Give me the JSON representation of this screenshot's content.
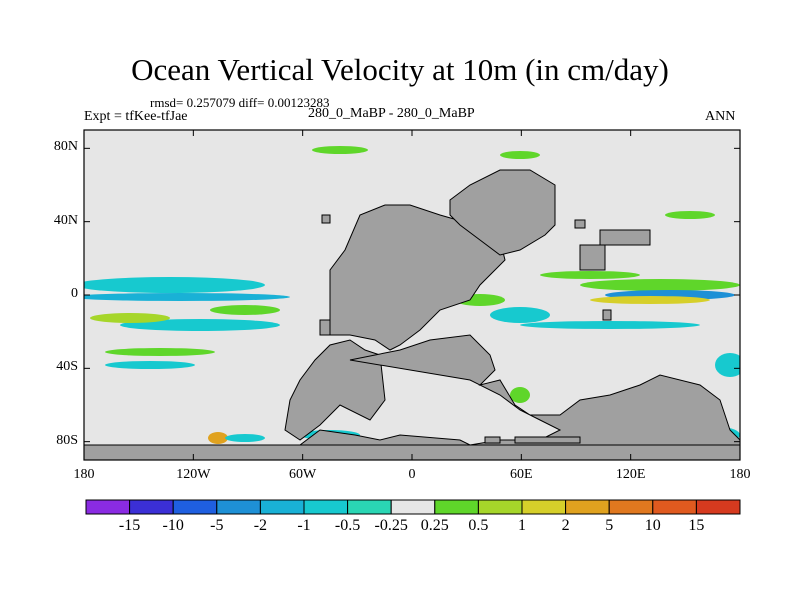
{
  "chart_data": {
    "type": "heatmap",
    "title": "Ocean Vertical Velocity at 10m (in cm/day)",
    "stats": "rmsd= 0.257079 diff= 0.00123283",
    "experiment": "Expt = tfKee-tfJae",
    "subtitle": "280_0_MaBP - 280_0_MaBP",
    "season": "ANN",
    "x_ticks": [
      "180",
      "120W",
      "60W",
      "0",
      "60E",
      "120E",
      "180"
    ],
    "x_tick_values": [
      -180,
      -120,
      -60,
      0,
      60,
      120,
      180
    ],
    "y_ticks": [
      "80N",
      "40N",
      "0",
      "40S",
      "80S"
    ],
    "y_tick_values": [
      80,
      40,
      0,
      -40,
      -80
    ],
    "xlim": [
      -180,
      180
    ],
    "ylim": [
      -90,
      90
    ],
    "colorbar_labels": [
      "-15",
      "-10",
      "-5",
      "-2",
      "-1",
      "-0.5",
      "-0.25",
      "0.25",
      "0.5",
      "1",
      "2",
      "5",
      "10",
      "15"
    ],
    "colorbar_colors": [
      "#8a2be2",
      "#3b2fd6",
      "#1f5fe0",
      "#1e90d6",
      "#19b1d6",
      "#17c9cf",
      "#2ad6b4",
      "#e6e6e6",
      "#5fd62a",
      "#a6d62a",
      "#d6cf2a",
      "#e0a21f",
      "#e0781f",
      "#e05a1f",
      "#d63a1f"
    ],
    "colors": {
      "land": "#a0a0a0",
      "ocean_neutral": "#e6e6e6"
    }
  }
}
